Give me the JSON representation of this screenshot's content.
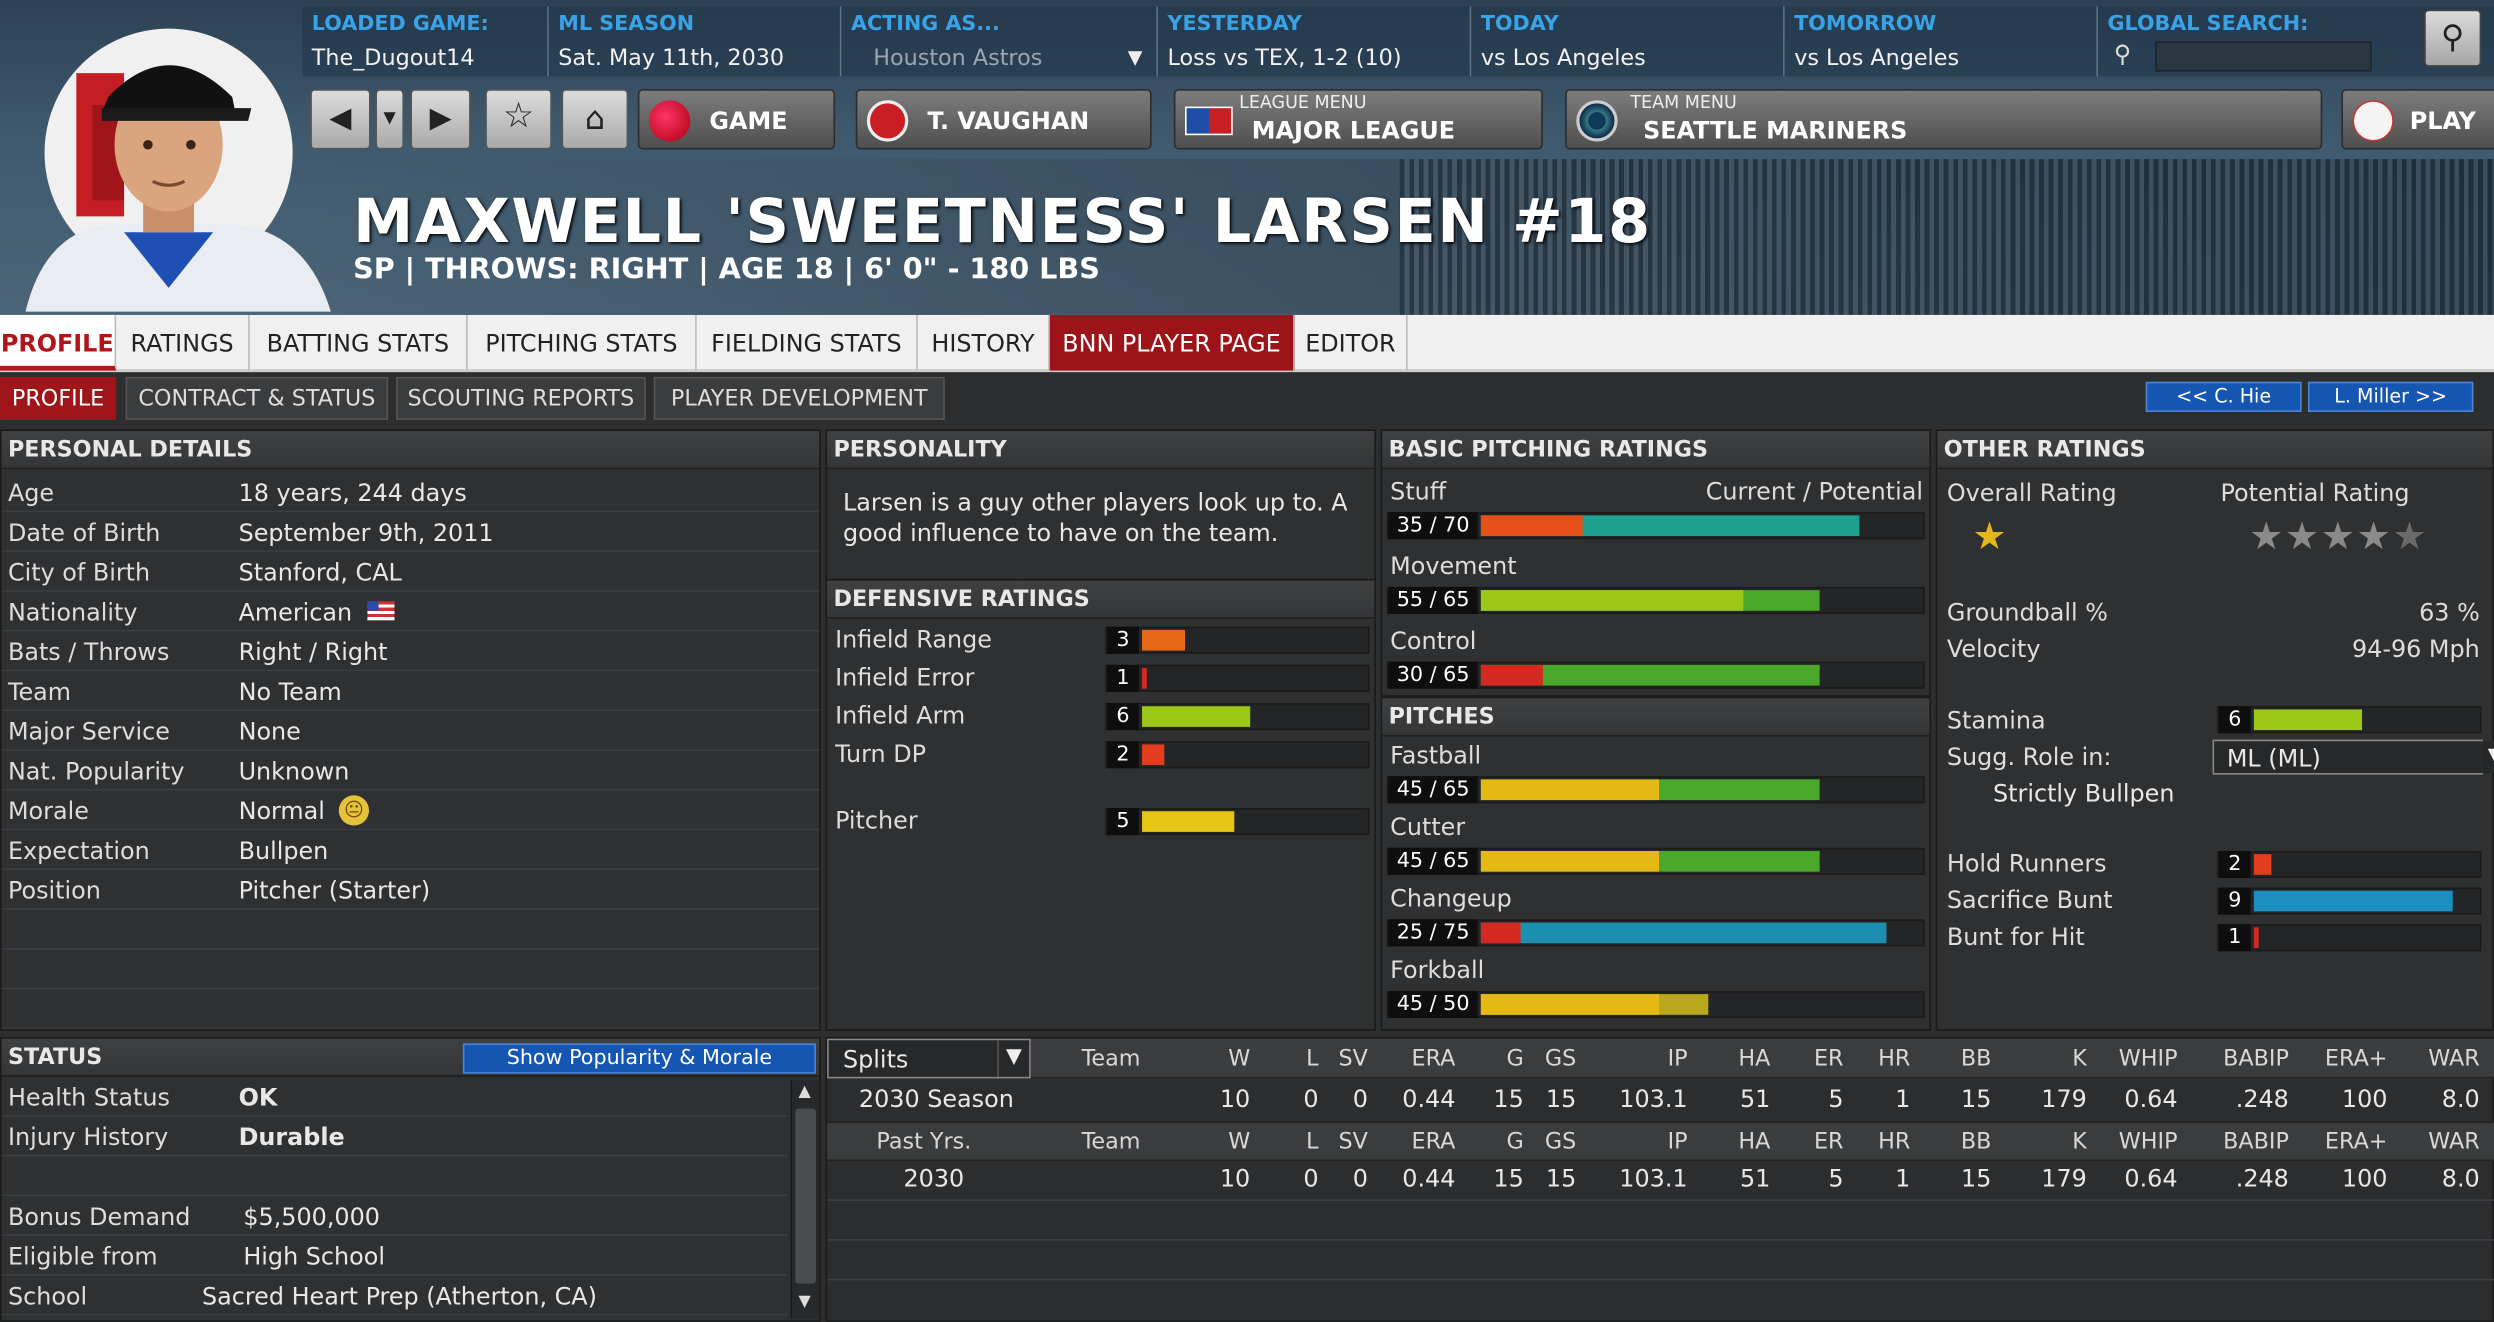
{
  "header": {
    "info": [
      {
        "label": "LOADED GAME:",
        "value": "The_Dugout14"
      },
      {
        "label": "ML SEASON",
        "value": "Sat. May 11th, 2030"
      },
      {
        "label": "ACTING AS...",
        "value": "Houston Astros"
      },
      {
        "label": "YESTERDAY",
        "value": "Loss vs TEX, 1-2 (10)"
      },
      {
        "label": "TODAY",
        "value": "vs Los Angeles"
      },
      {
        "label": "TOMORROW",
        "value": "vs Los Angeles"
      },
      {
        "label": "GLOBAL SEARCH:",
        "value": ""
      }
    ],
    "buttons": {
      "game": "GAME",
      "manager": "T. VAUGHAN",
      "league_sub": "LEAGUE MENU",
      "league": "MAJOR LEAGUE",
      "team_sub": "TEAM MENU",
      "team": "SEATTLE MARINERS",
      "play": "PLAY"
    },
    "player_name": "MAXWELL 'SWEETNESS' LARSEN  #18",
    "player_info": "SP | THROWS: RIGHT | AGE 18 | 6' 0\" - 180 LBS"
  },
  "tabs": [
    "PROFILE",
    "RATINGS",
    "BATTING STATS",
    "PITCHING STATS",
    "FIELDING STATS",
    "HISTORY",
    "BNN PLAYER PAGE",
    "EDITOR"
  ],
  "subtabs": [
    "PROFILE",
    "CONTRACT & STATUS",
    "SCOUTING REPORTS",
    "PLAYER DEVELOPMENT"
  ],
  "nav": {
    "prev": "<< C. Hie",
    "next": "L. Miller >>"
  },
  "personal": {
    "title": "PERSONAL DETAILS",
    "rows": [
      {
        "k": "Age",
        "v": "18 years, 244 days"
      },
      {
        "k": "Date of Birth",
        "v": "September 9th, 2011"
      },
      {
        "k": "City of Birth",
        "v": "Stanford, CAL"
      },
      {
        "k": "Nationality",
        "v": "American"
      },
      {
        "k": "Bats / Throws",
        "v": "Right / Right"
      },
      {
        "k": "Team",
        "v": "No Team"
      },
      {
        "k": "Major Service",
        "v": "None"
      },
      {
        "k": "Nat. Popularity",
        "v": "Unknown"
      },
      {
        "k": "Morale",
        "v": "Normal"
      },
      {
        "k": "Expectation",
        "v": "Bullpen"
      },
      {
        "k": "Position",
        "v": "Pitcher (Starter)"
      }
    ]
  },
  "personality": {
    "title": "PERSONALITY",
    "text": "Larsen is a guy other players look up to. A good influence to have on the team."
  },
  "defensive": {
    "title": "DEFENSIVE RATINGS",
    "items": [
      {
        "label": "Infield Range",
        "value": "3",
        "fill": 0.19,
        "color": "#e8681a"
      },
      {
        "label": "Infield Error",
        "value": "1",
        "fill": 0.02,
        "color": "#d42a22"
      },
      {
        "label": "Infield Arm",
        "value": "6",
        "fill": 0.48,
        "color": "#9dc81a"
      },
      {
        "label": "Turn DP",
        "value": "2",
        "fill": 0.1,
        "color": "#e23d1c"
      },
      {
        "label": "Pitcher",
        "value": "5",
        "fill": 0.41,
        "color": "#e6c614"
      }
    ]
  },
  "basic": {
    "title": "BASIC PITCHING RATINGS",
    "header_right": "Current / Potential",
    "items": [
      {
        "label": "Stuff",
        "value": "35 / 70",
        "cur": 0.23,
        "pot": 0.85,
        "c1": "#e8501a",
        "c2": "#1ea08f"
      },
      {
        "label": "Movement",
        "value": "55 / 65",
        "cur": 0.59,
        "pot": 0.76,
        "c1": "#9dc81a",
        "c2": "#4aa82b"
      },
      {
        "label": "Control",
        "value": "30 / 65",
        "cur": 0.14,
        "pot": 0.76,
        "c1": "#d42a22",
        "c2": "#4aa82b"
      }
    ]
  },
  "pitches": {
    "title": "PITCHES",
    "items": [
      {
        "label": "Fastball",
        "value": "45 / 65",
        "cur": 0.4,
        "pot": 0.76,
        "c1": "#e6b814",
        "c2": "#4aa82b"
      },
      {
        "label": "Cutter",
        "value": "45 / 65",
        "cur": 0.4,
        "pot": 0.76,
        "c1": "#e6b814",
        "c2": "#4aa82b"
      },
      {
        "label": "Changeup",
        "value": "25 / 75",
        "cur": 0.09,
        "pot": 0.91,
        "c1": "#d42a22",
        "c2": "#1a8fb0"
      },
      {
        "label": "Forkball",
        "value": "45 / 50",
        "cur": 0.4,
        "pot": 0.51,
        "c1": "#e6b814",
        "c2": "#b8a81a"
      }
    ]
  },
  "other": {
    "title": "OTHER RATINGS",
    "overall_label": "Overall Rating",
    "potential_label": "Potential Rating",
    "overall_stars": 0.5,
    "potential_stars": 4.5,
    "groundball_label": "Groundball %",
    "groundball": "63 %",
    "velocity_label": "Velocity",
    "velocity": "94-96 Mph",
    "stamina_label": "Stamina",
    "stamina": "6",
    "stamina_fill": 0.48,
    "role_label": "Sugg. Role in:",
    "role_value": "ML (ML)",
    "role_text": "Strictly Bullpen",
    "bars": [
      {
        "label": "Hold Runners",
        "value": "2",
        "fill": 0.08,
        "color": "#e23d1c"
      },
      {
        "label": "Sacrifice Bunt",
        "value": "9",
        "fill": 0.88,
        "color": "#1a8fc0"
      },
      {
        "label": "Bunt for Hit",
        "value": "1",
        "fill": 0.02,
        "color": "#d42a22"
      }
    ]
  },
  "status": {
    "title": "STATUS",
    "button": "Show Popularity & Morale",
    "rows": [
      {
        "k": "Health Status",
        "v": "OK",
        "green": true
      },
      {
        "k": "Injury History",
        "v": "Durable",
        "green": true
      },
      {
        "k": "",
        "v": ""
      },
      {
        "k": "Bonus Demand",
        "v": "$5,500,000"
      },
      {
        "k": "Eligible from",
        "v": "High School"
      },
      {
        "k": "School",
        "v": "Sacred Heart Prep (Atherton, CA)"
      }
    ]
  },
  "stats": {
    "splits": "Splits",
    "header1": [
      "Team",
      "W",
      "L",
      "SV",
      "ERA",
      "G",
      "GS",
      "IP",
      "HA",
      "ER",
      "HR",
      "BB",
      "K",
      "WHIP",
      "BABIP",
      "ERA+",
      "WAR"
    ],
    "row1_label": "2030 Season",
    "row1": [
      "",
      "10",
      "0",
      "0",
      "0.44",
      "15",
      "15",
      "103.1",
      "51",
      "5",
      "1",
      "15",
      "179",
      "0.64",
      ".248",
      "100",
      "8.0"
    ],
    "header2_label": "Past Yrs.",
    "header2": [
      "Team",
      "W",
      "L",
      "SV",
      "ERA",
      "G",
      "GS",
      "IP",
      "HA",
      "ER",
      "HR",
      "BB",
      "K",
      "WHIP",
      "BABIP",
      "ERA+",
      "WAR"
    ],
    "row2_label": "2030",
    "row2": [
      "",
      "10",
      "0",
      "0",
      "0.44",
      "15",
      "15",
      "103.1",
      "51",
      "5",
      "1",
      "15",
      "179",
      "0.64",
      ".248",
      "100",
      "8.0"
    ]
  }
}
